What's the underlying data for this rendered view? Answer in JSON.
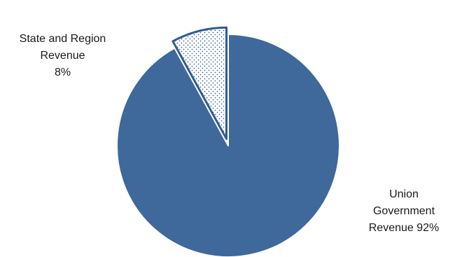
{
  "chart_data": {
    "type": "pie",
    "title": "",
    "slices": [
      {
        "label_lines": [
          "Union",
          "Government",
          "Revenue 92%"
        ],
        "value": 92,
        "color": "#3F689B",
        "pattern": "solid",
        "exploded": false
      },
      {
        "label_lines": [
          "State and Region",
          "Revenue",
          "8%"
        ],
        "value": 8,
        "color": "#2E5C92",
        "pattern": "dotted",
        "exploded": true
      }
    ],
    "start_angle": "12 o'clock",
    "direction": "clockwise",
    "legend": "none"
  }
}
